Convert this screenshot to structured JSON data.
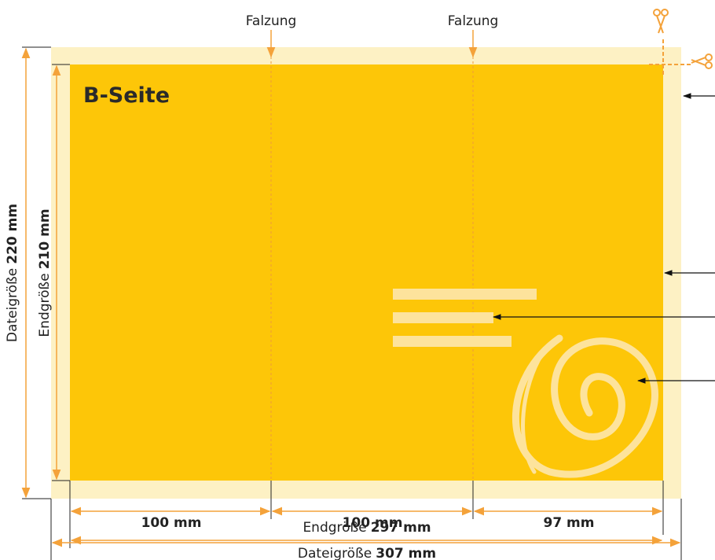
{
  "fold_labels": [
    "Falzung",
    "Falzung"
  ],
  "side_label": "B-Seite",
  "segments": [
    "100 mm",
    "100 mm",
    "97 mm"
  ],
  "final_width": {
    "label": "Endgröße",
    "value": "297 mm"
  },
  "file_width": {
    "label": "Dateigröße",
    "value": "307 mm"
  },
  "file_height": {
    "label": "Dateigröße",
    "value": "220 mm"
  },
  "final_height": {
    "label": "Endgröße",
    "value": "210 mm"
  }
}
